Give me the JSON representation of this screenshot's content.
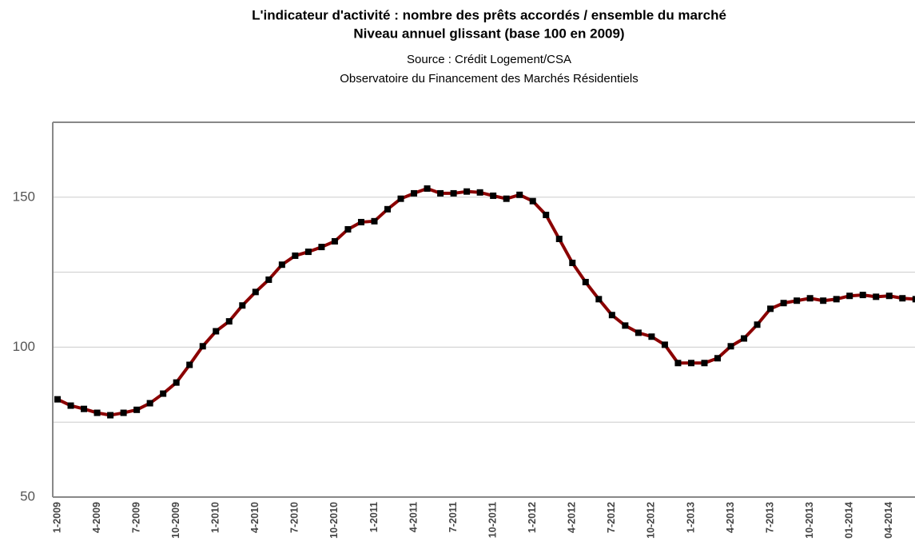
{
  "chart_data": {
    "type": "line",
    "title": "L'indicateur d'activité : nombre des prêts accordés / ensemble du marché",
    "subtitle": "Niveau annuel glissant (base 100 en 2009)",
    "source": "Source : Crédit Logement/CSA",
    "source_detail": "Observatoire du Financement des Marchés Résidentiels",
    "categories": [
      "1-2009",
      null,
      null,
      "4-2009",
      null,
      null,
      "7-2009",
      null,
      null,
      "10-2009",
      null,
      null,
      "1-2010",
      null,
      null,
      "4-2010",
      null,
      null,
      "7-2010",
      null,
      null,
      "10-2010",
      null,
      null,
      "1-2011",
      null,
      null,
      "4-2011",
      null,
      null,
      "7-2011",
      null,
      null,
      "10-2011",
      null,
      null,
      "1-2012",
      null,
      null,
      "4-2012",
      null,
      null,
      "7-2012",
      null,
      null,
      "10-2012",
      null,
      null,
      "1-2013",
      null,
      null,
      "4-2013",
      null,
      null,
      "7-2013",
      null,
      null,
      "10-2013",
      null,
      null,
      "01-2014",
      null,
      null,
      "04-2014",
      null,
      null
    ],
    "series": [
      {
        "color": "#8b0000",
        "marker_color": "#000000",
        "values": [
          82.6,
          80.5,
          79.4,
          78.1,
          77.3,
          78.1,
          79.1,
          81.3,
          84.5,
          88.2,
          94.1,
          100.3,
          105.3,
          108.6,
          113.9,
          118.4,
          122.5,
          127.5,
          130.5,
          131.8,
          133.4,
          135.3,
          139.3,
          141.7,
          142.0,
          146.0,
          149.5,
          151.3,
          152.9,
          151.3,
          151.3,
          151.9,
          151.6,
          150.5,
          149.5,
          150.8,
          148.7,
          144.1,
          136.1,
          128.1,
          121.7,
          116.0,
          110.7,
          107.2,
          104.8,
          103.5,
          100.8,
          94.7,
          94.7,
          94.7,
          96.3,
          100.3,
          102.9,
          107.5,
          112.8,
          114.7,
          115.5,
          116.3,
          115.5,
          116.0,
          117.1,
          117.4,
          116.8,
          117.1,
          116.3,
          116.0
        ]
      }
    ],
    "ylim": [
      50,
      175
    ],
    "yticks": [
      50,
      100,
      150
    ],
    "yminor_grid": [
      75,
      125
    ],
    "grid": true
  }
}
